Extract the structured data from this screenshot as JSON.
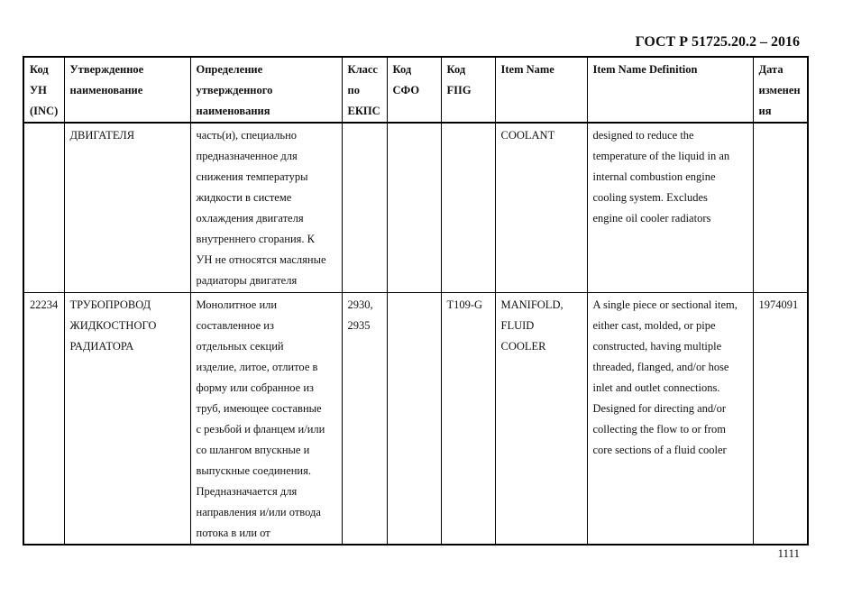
{
  "header": {
    "doc_title": "ГОСТ Р 51725.20.2 – 2016"
  },
  "table": {
    "columns": [
      [
        "Код",
        "УН",
        "(INC)"
      ],
      [
        "Утвержденное",
        "наименование"
      ],
      [
        "Определение",
        "утвержденного",
        "наименования"
      ],
      [
        "Класс",
        "по",
        "ЕКПС"
      ],
      [
        "Код",
        "СФО"
      ],
      [
        "Код",
        "FIIG"
      ],
      [
        "Item Name"
      ],
      [
        "Item Name Definition"
      ],
      [
        "Дата",
        "изменен",
        "ия"
      ]
    ],
    "rows": [
      [
        [],
        [
          "ДВИГАТЕЛЯ"
        ],
        [
          "часть(и), специально",
          "предназначенное для",
          "снижения температуры",
          "жидкости в системе",
          "охлаждения двигателя",
          "внутреннего сгорания. К",
          "УН не относятся масляные",
          "радиаторы двигателя"
        ],
        [],
        [],
        [],
        [
          "COOLANT"
        ],
        [
          "designed to reduce the",
          "temperature of the liquid in an",
          "internal combustion engine",
          "cooling system. Excludes",
          "engine oil cooler radiators"
        ],
        []
      ],
      [
        [
          "22234"
        ],
        [
          "ТРУБОПРОВОД",
          "ЖИДКОСТНОГО",
          "РАДИАТОРА"
        ],
        [
          "Монолитное или",
          "составленное из",
          "отдельных секций",
          "изделие, литое, отлитое в",
          "форму или собранное из",
          "труб, имеющее составные",
          "с резьбой и фланцем и/или",
          "со шлангом впускные и",
          "выпускные соединения.",
          "Предназначается для",
          "направления и/или отвода",
          "потока в или от"
        ],
        [
          "2930,",
          "2935"
        ],
        [],
        [
          "T109-G"
        ],
        [
          "MANIFOLD,",
          "FLUID",
          "COOLER"
        ],
        [
          "A single piece or sectional item,",
          "either cast, molded, or pipe",
          "constructed, having multiple",
          "threaded, flanged, and/or hose",
          "inlet and outlet connections.",
          "Designed for directing and/or",
          "collecting the flow to or from",
          "core sections of a fluid cooler"
        ],
        [
          "1974091"
        ]
      ]
    ]
  },
  "footer": {
    "page_number": "1111"
  }
}
